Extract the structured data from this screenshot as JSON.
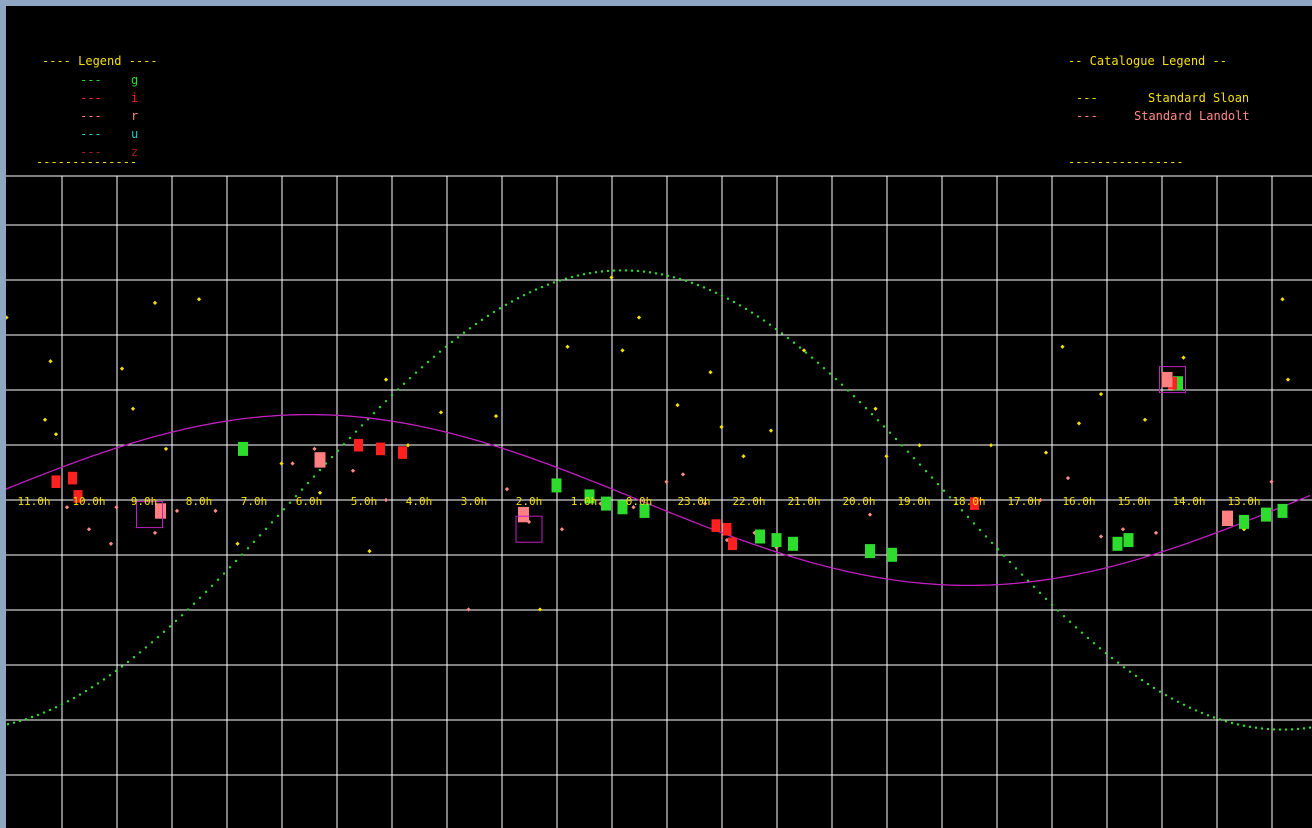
{
  "legend": {
    "title": "---- Legend ----",
    "dash": "---",
    "entries": [
      {
        "label": "g",
        "color": "#2edc2e"
      },
      {
        "label": "i",
        "color": "#ff2020"
      },
      {
        "label": "r",
        "color": "#ff8080"
      },
      {
        "label": "u",
        "color": "#20c8c8"
      },
      {
        "label": "z",
        "color": "#a02020"
      }
    ],
    "rule": "--------------",
    "title_color": "#f5e000"
  },
  "catalogue_legend": {
    "title": "-- Catalogue Legend --",
    "entries": [
      {
        "dash": "---",
        "label": "Standard Sloan",
        "color": "#f5e000"
      },
      {
        "dash": "---",
        "label": "Standard Landolt",
        "color": "#ff8a8a"
      }
    ],
    "rule": "----------------"
  },
  "colors": {
    "background": "#000000",
    "grid": "#ffffff",
    "ecliptic_curve": "#c020c0",
    "galactic_curve": "#2edc2e",
    "sloan_point": "#f5e000",
    "landolt_point": "#ff8a8a",
    "field_box": "#c020c0"
  },
  "chart_data": {
    "type": "scatter",
    "x_axis": {
      "unit": "h",
      "direction": "decreasing",
      "ticks": [
        11.0,
        10.0,
        9.0,
        8.0,
        7.0,
        6.0,
        5.0,
        4.0,
        3.0,
        2.0,
        1.0,
        0.0,
        23.0,
        22.0,
        21.0,
        20.0,
        19.0,
        18.0,
        17.0,
        16.0,
        15.0,
        14.0,
        13.0,
        12.0
      ],
      "tick_labels": [
        "11.0h",
        "10.0h",
        "9.0h",
        "8.0h",
        "7.0h",
        "6.0h",
        "5.0h",
        "4.0h",
        "3.0h",
        "2.0h",
        "1.0h",
        "0.0h",
        "23.0h",
        "22.0h",
        "21.0h",
        "20.0h",
        "19.0h",
        "18.0h",
        "17.0h",
        "16.0h",
        "15.0h",
        "14.0h",
        "13.0h",
        "12.0h"
      ]
    },
    "grid": true,
    "ecliptic": {
      "amplitude_deg": 23.4
    },
    "galactic_plane": {
      "amplitude_deg": 62.9
    },
    "series": [
      {
        "name": "Standard Sloan",
        "points": [
          [
            11.5,
            50
          ],
          [
            10.8,
            22
          ],
          [
            10.7,
            38
          ],
          [
            10.6,
            18
          ],
          [
            9.4,
            36
          ],
          [
            8.8,
            54
          ],
          [
            8.6,
            14
          ],
          [
            9.2,
            25
          ],
          [
            7.3,
            -12
          ],
          [
            6.5,
            10
          ],
          [
            5.8,
            2
          ],
          [
            4.9,
            -14
          ],
          [
            4.6,
            33
          ],
          [
            4.2,
            15
          ],
          [
            3.6,
            24
          ],
          [
            2.6,
            23
          ],
          [
            1.8,
            -30
          ],
          [
            1.3,
            42
          ],
          [
            0.5,
            61
          ],
          [
            0.3,
            41
          ],
          [
            23.3,
            26
          ],
          [
            22.7,
            35
          ],
          [
            22.5,
            20
          ],
          [
            22.1,
            12
          ],
          [
            21.6,
            19
          ],
          [
            21.0,
            41
          ],
          [
            19.7,
            25
          ],
          [
            18.9,
            15
          ],
          [
            17.6,
            15
          ],
          [
            16.6,
            13
          ],
          [
            16.3,
            42
          ],
          [
            16.0,
            21
          ],
          [
            15.6,
            29
          ],
          [
            14.8,
            22
          ],
          [
            14.4,
            34
          ],
          [
            14.1,
            39
          ],
          [
            13.0,
            -8
          ],
          [
            12.3,
            55
          ],
          [
            12.2,
            33
          ],
          [
            11.9,
            15
          ],
          [
            19.5,
            12
          ],
          [
            24.0,
            50
          ],
          [
            8.0,
            55
          ]
        ]
      },
      {
        "name": "Standard Landolt",
        "points": [
          [
            10.4,
            -2
          ],
          [
            10.0,
            -8
          ],
          [
            9.6,
            -12
          ],
          [
            8.8,
            -9
          ],
          [
            8.4,
            -3
          ],
          [
            7.7,
            -3
          ],
          [
            6.3,
            10
          ],
          [
            5.9,
            14
          ],
          [
            5.2,
            8
          ],
          [
            4.6,
            0
          ],
          [
            2.4,
            3
          ],
          [
            2.0,
            -6
          ],
          [
            1.4,
            -8
          ],
          [
            0.1,
            -2
          ],
          [
            23.5,
            5
          ],
          [
            23.2,
            7
          ],
          [
            22.8,
            -1
          ],
          [
            22.4,
            -11
          ],
          [
            21.9,
            -9
          ],
          [
            21.5,
            -13
          ],
          [
            19.8,
            -4
          ],
          [
            16.7,
            0
          ],
          [
            16.2,
            6
          ],
          [
            15.6,
            -10
          ],
          [
            15.2,
            -8
          ],
          [
            14.6,
            -9
          ],
          [
            12.5,
            5
          ],
          [
            9.5,
            -2
          ],
          [
            3.1,
            -30
          ],
          [
            0.7,
            -1
          ]
        ]
      },
      {
        "name": "g",
        "points": [
          [
            7.2,
            14
          ],
          [
            1.5,
            4
          ],
          [
            0.9,
            1
          ],
          [
            0.6,
            -1
          ],
          [
            0.3,
            -2
          ],
          [
            23.9,
            -3
          ],
          [
            21.8,
            -10
          ],
          [
            21.5,
            -11
          ],
          [
            21.2,
            -12
          ],
          [
            19.8,
            -14
          ],
          [
            19.4,
            -15
          ],
          [
            15.3,
            -12
          ],
          [
            15.1,
            -11
          ],
          [
            13.0,
            -6
          ],
          [
            12.6,
            -4
          ],
          [
            12.3,
            -3
          ],
          [
            14.2,
            32
          ]
        ]
      },
      {
        "name": "i",
        "points": [
          [
            10.6,
            5
          ],
          [
            10.3,
            6
          ],
          [
            5.1,
            15
          ],
          [
            4.7,
            14
          ],
          [
            4.3,
            13
          ],
          [
            22.6,
            -7
          ],
          [
            22.4,
            -8
          ],
          [
            22.3,
            -12
          ],
          [
            17.9,
            -1
          ],
          [
            10.2,
            1
          ],
          [
            14.3,
            32
          ]
        ]
      },
      {
        "name": "r",
        "points": [
          [
            2.1,
            -4
          ],
          [
            8.7,
            -3
          ],
          [
            14.4,
            33
          ],
          [
            13.3,
            -5
          ],
          [
            5.8,
            11
          ]
        ]
      }
    ]
  }
}
